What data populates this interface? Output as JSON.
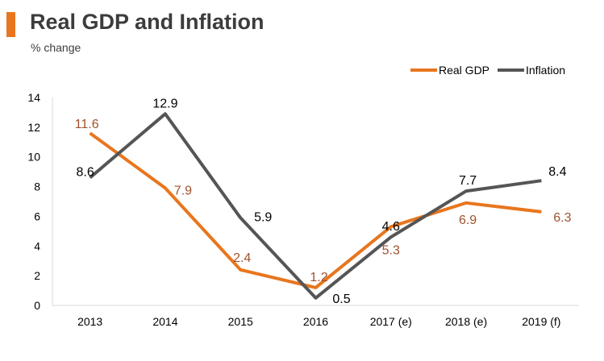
{
  "chart_data": {
    "type": "line",
    "title": "Real GDP and Inflation",
    "subtitle": "% change",
    "categories": [
      "2013",
      "2014",
      "2015",
      "2016",
      "2017 (e)",
      "2018 (e)",
      "2019 (f)"
    ],
    "series": [
      {
        "name": "Real GDP",
        "values": [
          11.6,
          7.9,
          2.4,
          1.2,
          5.3,
          6.9,
          6.3
        ],
        "color": "#E8761E",
        "label_color": "#A0522D"
      },
      {
        "name": "Inflation",
        "values": [
          8.6,
          12.9,
          5.9,
          0.5,
          4.6,
          7.7,
          8.4
        ],
        "color": "#555555",
        "label_color": "#000000"
      }
    ],
    "y_ticks": [
      "0",
      "2",
      "4",
      "6",
      "8",
      "10",
      "12",
      "14"
    ],
    "ylim": [
      0,
      14
    ],
    "grid": false,
    "legend_position": "top-right",
    "xlabel": "",
    "ylabel": ""
  },
  "colors": {
    "accent": "#E8761E",
    "title": "#3C3C3C"
  }
}
